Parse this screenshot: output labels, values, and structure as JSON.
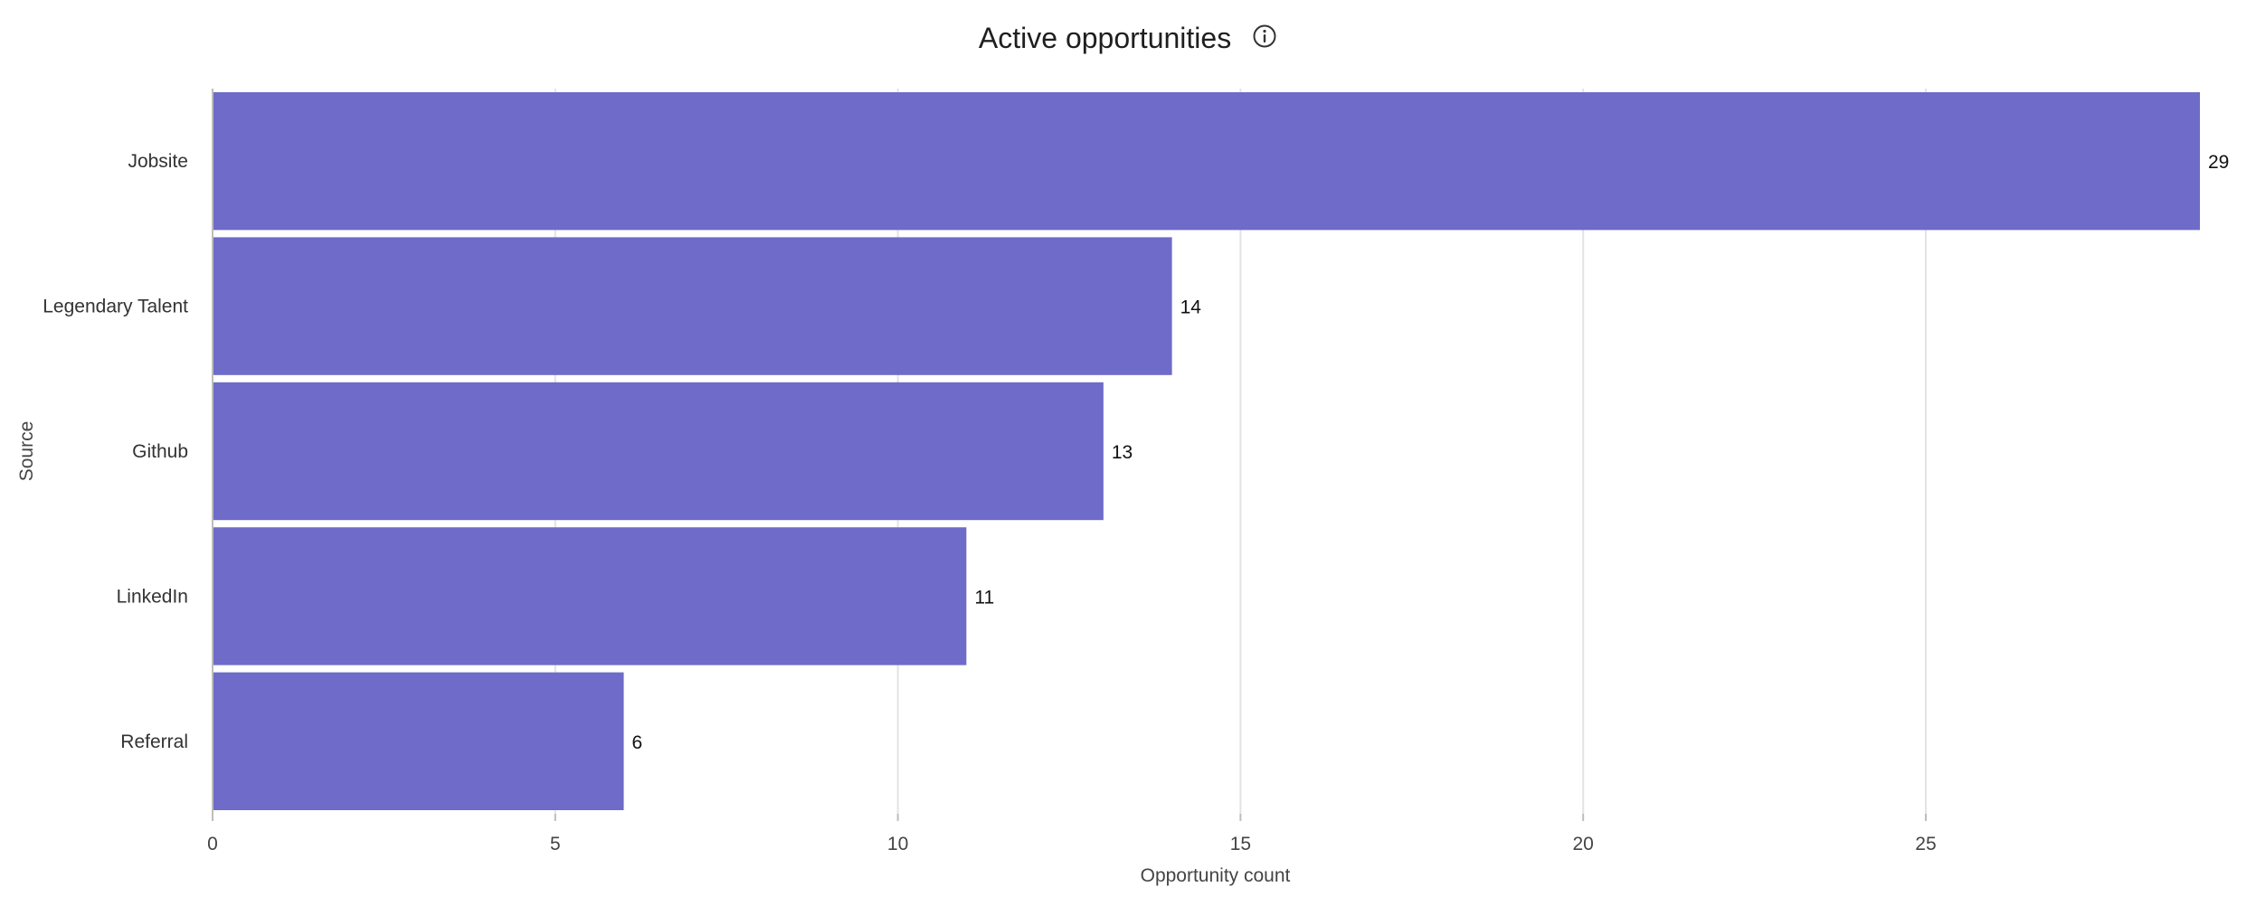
{
  "chart_data": {
    "type": "bar",
    "orientation": "horizontal",
    "title": "Active opportunities",
    "title_icon": "info-icon",
    "xlabel": "Opportunity count",
    "ylabel": "Source",
    "categories": [
      "Jobsite",
      "Legendary Talent",
      "Github",
      "LinkedIn",
      "Referral"
    ],
    "values": [
      29,
      14,
      13,
      11,
      6
    ],
    "data_labels": [
      "29",
      "14",
      "13",
      "11",
      "6"
    ],
    "x_ticks": [
      0,
      5,
      10,
      15,
      20,
      25
    ],
    "x_tick_labels": [
      "0",
      "5",
      "10",
      "15",
      "20",
      "25"
    ],
    "xlim": [
      0,
      29
    ],
    "grid": true,
    "legend": "none",
    "bar_color": "#6e6bc9",
    "grid_color": "#e3e3e3"
  }
}
